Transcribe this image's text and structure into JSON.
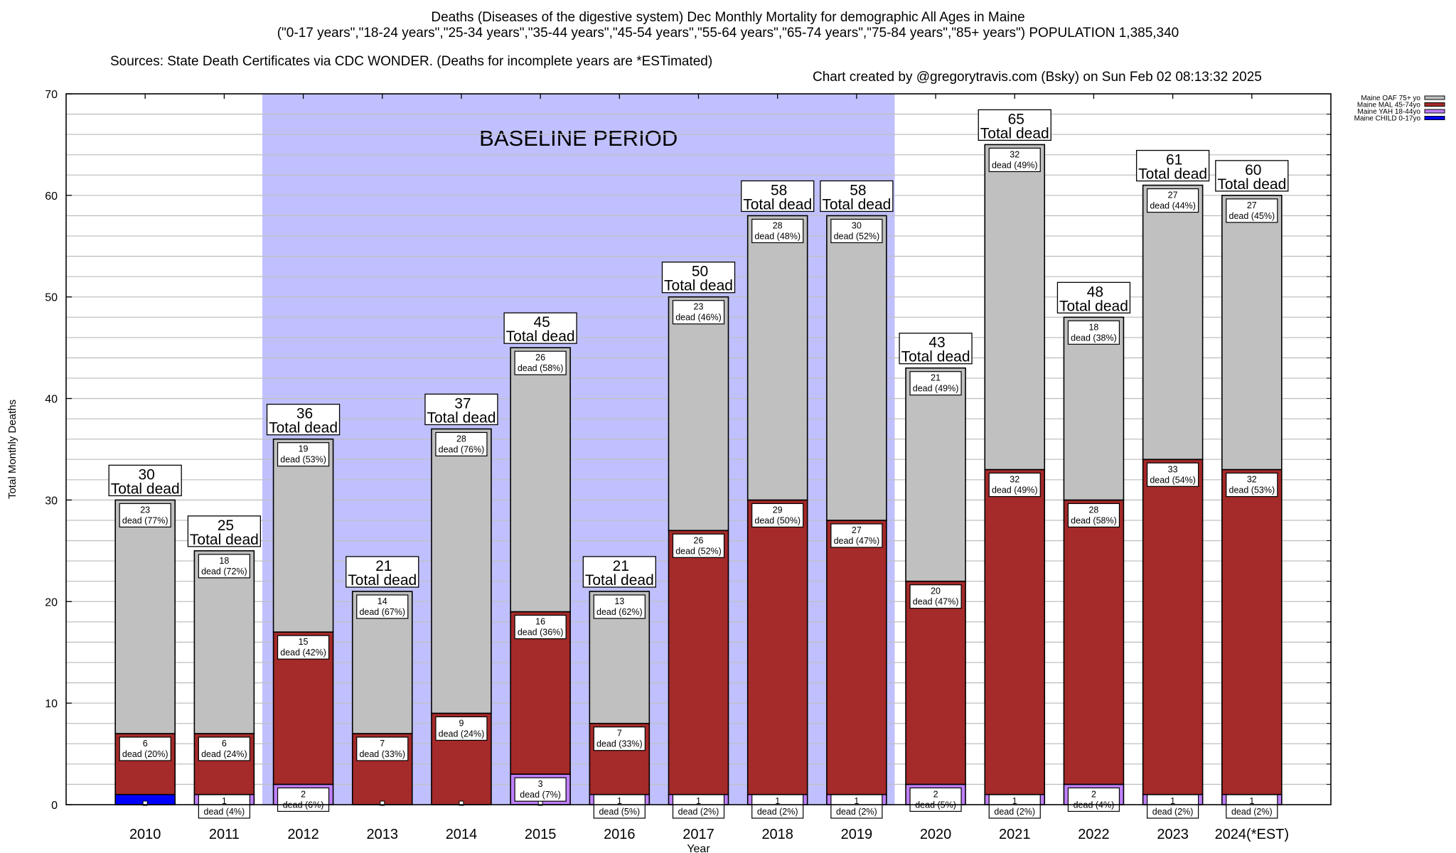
{
  "header": {
    "title_line1": "Deaths (Diseases of the digestive system) Dec Monthly Mortality for demographic All Ages in Maine",
    "title_line2": "(\"0-17 years\",\"18-24 years\",\"25-34 years\",\"35-44 years\",\"45-54 years\",\"55-64 years\",\"65-74 years\",\"75-84 years\",\"85+ years\") POPULATION 1,385,340",
    "sources": "Sources: State Death Certificates via CDC WONDER. (Deaths for incomplete years are *ESTimated)",
    "credit": "Chart created by @gregorytravis.com (Bsky) on Sun Feb 02 08:13:32 2025"
  },
  "chart_data": {
    "type": "bar",
    "stacked": true,
    "xlabel": "Year",
    "ylabel": "Total Monthly Deaths",
    "ylim": [
      0,
      70
    ],
    "yticks": [
      0,
      10,
      20,
      30,
      40,
      50,
      60,
      70
    ],
    "grid": true,
    "legend_position": "top-right-outside",
    "annotation": "BASELINE PERIOD",
    "baseline_period": [
      "2012",
      "2019"
    ],
    "categories": [
      "2010",
      "2011",
      "2012",
      "2013",
      "2014",
      "2015",
      "2016",
      "2017",
      "2018",
      "2019",
      "2020",
      "2021",
      "2022",
      "2023",
      "2024(*EST)"
    ],
    "series": [
      {
        "name": "Maine CHILD 0-17yo",
        "color": "#0000ff",
        "values": [
          1,
          0,
          0,
          0,
          0,
          0,
          0,
          0,
          0,
          0,
          0,
          0,
          0,
          0,
          0
        ],
        "labels": [
          "",
          "",
          "",
          "",
          "",
          "",
          "",
          "",
          "",
          "",
          "",
          "",
          "",
          "",
          ""
        ]
      },
      {
        "name": "Maine YAH 18-44yo",
        "color": "#c080ff",
        "values": [
          0,
          1,
          2,
          0,
          0,
          3,
          1,
          1,
          1,
          1,
          2,
          1,
          2,
          1,
          1
        ],
        "labels": [
          "",
          "dead (4%)",
          "dead (6%)",
          "",
          "",
          "dead (7%)",
          "dead (5%)",
          "dead (2%)",
          "dead (2%)",
          "dead (2%)",
          "dead (5%)",
          "dead (2%)",
          "dead (4%)",
          "dead (2%)",
          "dead (2%)"
        ]
      },
      {
        "name": "Maine MAL 45-74yo",
        "color": "#a52a2a",
        "values": [
          6,
          6,
          15,
          7,
          9,
          16,
          7,
          26,
          29,
          27,
          20,
          32,
          28,
          33,
          32
        ],
        "labels": [
          "dead (20%)",
          "dead (24%)",
          "dead (42%)",
          "dead (33%)",
          "dead (24%)",
          "dead (36%)",
          "dead (33%)",
          "dead (52%)",
          "dead (50%)",
          "dead (47%)",
          "dead (47%)",
          "dead (49%)",
          "dead (58%)",
          "dead (54%)",
          "dead (53%)"
        ]
      },
      {
        "name": "Maine OAF 75+ yo",
        "color": "#c0c0c0",
        "values": [
          23,
          18,
          19,
          14,
          28,
          26,
          13,
          23,
          28,
          30,
          21,
          32,
          18,
          27,
          27
        ],
        "labels": [
          "dead (77%)",
          "dead (72%)",
          "dead (53%)",
          "dead (67%)",
          "dead (76%)",
          "dead (58%)",
          "dead (62%)",
          "dead (46%)",
          "dead (48%)",
          "dead (52%)",
          "dead (49%)",
          "dead (49%)",
          "dead (38%)",
          "dead (44%)",
          "dead (45%)"
        ]
      }
    ],
    "totals": [
      30,
      25,
      36,
      21,
      37,
      45,
      21,
      50,
      58,
      58,
      43,
      65,
      48,
      61,
      60
    ],
    "total_label": "Total dead"
  },
  "colors": {
    "baseline_fill": "#c0c0ff",
    "grid": "#c0c0c0"
  }
}
